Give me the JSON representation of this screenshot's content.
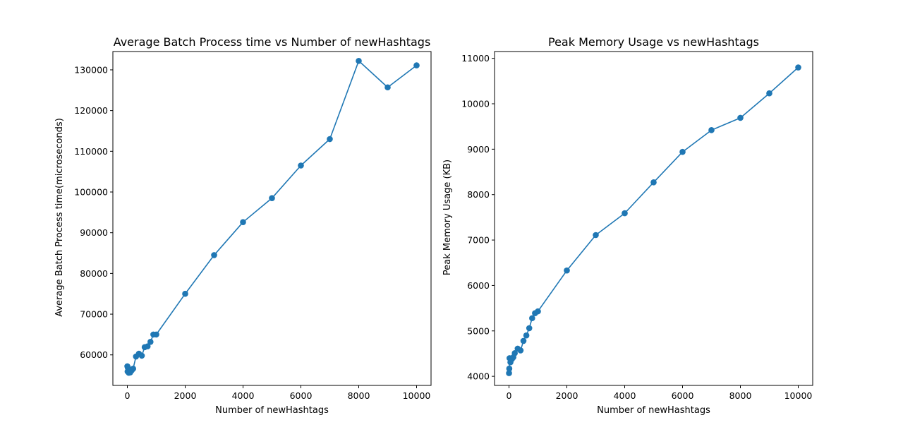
{
  "charts": {
    "colors": {
      "series": "#1f77b4",
      "axes": "#000000"
    },
    "chart_data": [
      {
        "type": "line",
        "title": "Average Batch Process time vs Number of newHashtags",
        "xlabel": "Number of newHashtags",
        "ylabel": "Average Batch Process time(microseconds)",
        "xlim": [
          -500,
          10500
        ],
        "ylim": [
          52500,
          134500
        ],
        "xticks": [
          0,
          2000,
          4000,
          6000,
          8000,
          10000
        ],
        "yticks": [
          60000,
          70000,
          80000,
          90000,
          100000,
          110000,
          120000,
          130000
        ],
        "grid": false,
        "markers": "circle",
        "series": [
          {
            "x": [
              1,
              10,
              20,
              50,
              100,
              150,
              200,
              300,
              400,
              500,
              600,
              700,
              800,
              900,
              1000,
              2000,
              3000,
              4000,
              5000,
              6000,
              7000,
              8000,
              9000,
              10000
            ],
            "values": [
              57200,
              55900,
              56800,
              55600,
              55700,
              56200,
              56600,
              59600,
              60300,
              59800,
              61900,
              62100,
              63200,
              65000,
              65000,
              75000,
              84500,
              92600,
              98500,
              106500,
              113000,
              132200,
              125700,
              131100
            ]
          }
        ]
      },
      {
        "type": "line",
        "title": "Peak Memory Usage vs newHashtags",
        "xlabel": "Number of newHashtags",
        "ylabel": "Peak Memory Usage (KB)",
        "xlim": [
          -500,
          10500
        ],
        "ylim": [
          3800,
          11150
        ],
        "xticks": [
          0,
          2000,
          4000,
          6000,
          8000,
          10000
        ],
        "yticks": [
          4000,
          5000,
          6000,
          7000,
          8000,
          9000,
          10000,
          11000
        ],
        "grid": false,
        "markers": "circle",
        "series": [
          {
            "x": [
              1,
              10,
              20,
              50,
              100,
              150,
              200,
              300,
              400,
              500,
              600,
              700,
              800,
              900,
              1000,
              2000,
              3000,
              4000,
              5000,
              6000,
              7000,
              8000,
              9000,
              10000
            ],
            "values": [
              4070,
              4170,
              4400,
              4310,
              4380,
              4420,
              4510,
              4610,
              4570,
              4780,
              4900,
              5060,
              5280,
              5390,
              5430,
              6330,
              7110,
              7590,
              8270,
              8940,
              9420,
              9690,
              10230,
              10800
            ]
          }
        ]
      }
    ]
  }
}
